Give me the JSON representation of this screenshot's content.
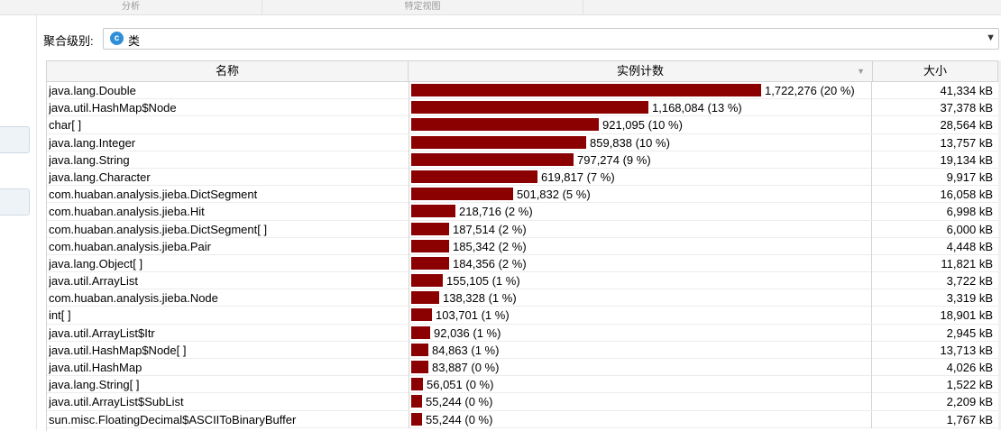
{
  "top_tabs": [
    {
      "label": "分析"
    },
    {
      "label": "特定视图"
    }
  ],
  "aggregation": {
    "label": "聚合级别:",
    "icon_letter": "c",
    "value": "类"
  },
  "table": {
    "headers": {
      "name": "名称",
      "count": "实例计数",
      "size": "大小"
    },
    "max_count": 1722276,
    "rows": [
      {
        "name": "java.lang.Double",
        "count": 1722276,
        "count_label": "1,722,276 (20 %)",
        "size": "41,334 kB"
      },
      {
        "name": "java.util.HashMap$Node",
        "count": 1168084,
        "count_label": "1,168,084 (13 %)",
        "size": "37,378 kB"
      },
      {
        "name": "char[ ]",
        "count": 921095,
        "count_label": "921,095 (10 %)",
        "size": "28,564 kB"
      },
      {
        "name": "java.lang.Integer",
        "count": 859838,
        "count_label": "859,838 (10 %)",
        "size": "13,757 kB"
      },
      {
        "name": "java.lang.String",
        "count": 797274,
        "count_label": "797,274 (9 %)",
        "size": "19,134 kB"
      },
      {
        "name": "java.lang.Character",
        "count": 619817,
        "count_label": "619,817 (7 %)",
        "size": "9,917 kB"
      },
      {
        "name": "com.huaban.analysis.jieba.DictSegment",
        "count": 501832,
        "count_label": "501,832 (5 %)",
        "size": "16,058 kB"
      },
      {
        "name": "com.huaban.analysis.jieba.Hit",
        "count": 218716,
        "count_label": "218,716 (2 %)",
        "size": "6,998 kB"
      },
      {
        "name": "com.huaban.analysis.jieba.DictSegment[ ]",
        "count": 187514,
        "count_label": "187,514 (2 %)",
        "size": "6,000 kB"
      },
      {
        "name": "com.huaban.analysis.jieba.Pair",
        "count": 185342,
        "count_label": "185,342 (2 %)",
        "size": "4,448 kB"
      },
      {
        "name": "java.lang.Object[ ]",
        "count": 184356,
        "count_label": "184,356 (2 %)",
        "size": "11,821 kB"
      },
      {
        "name": "java.util.ArrayList",
        "count": 155105,
        "count_label": "155,105 (1 %)",
        "size": "3,722 kB"
      },
      {
        "name": "com.huaban.analysis.jieba.Node",
        "count": 138328,
        "count_label": "138,328 (1 %)",
        "size": "3,319 kB"
      },
      {
        "name": "int[ ]",
        "count": 103701,
        "count_label": "103,701 (1 %)",
        "size": "18,901 kB"
      },
      {
        "name": "java.util.ArrayList$Itr",
        "count": 92036,
        "count_label": "92,036 (1 %)",
        "size": "2,945 kB"
      },
      {
        "name": "java.util.HashMap$Node[ ]",
        "count": 84863,
        "count_label": "84,863 (1 %)",
        "size": "13,713 kB"
      },
      {
        "name": "java.util.HashMap",
        "count": 83887,
        "count_label": "83,887 (0 %)",
        "size": "4,026 kB"
      },
      {
        "name": "java.lang.String[ ]",
        "count": 56051,
        "count_label": "56,051 (0 %)",
        "size": "1,522 kB"
      },
      {
        "name": "java.util.ArrayList$SubList",
        "count": 55244,
        "count_label": "55,244 (0 %)",
        "size": "2,209 kB"
      },
      {
        "name": "sun.misc.FloatingDecimal$ASCIIToBinaryBuffer",
        "count": 55244,
        "count_label": "55,244 (0 %)",
        "size": "1,767 kB"
      }
    ]
  },
  "colors": {
    "bar": "#8b0000",
    "agg_icon": "#2f8ed8"
  }
}
